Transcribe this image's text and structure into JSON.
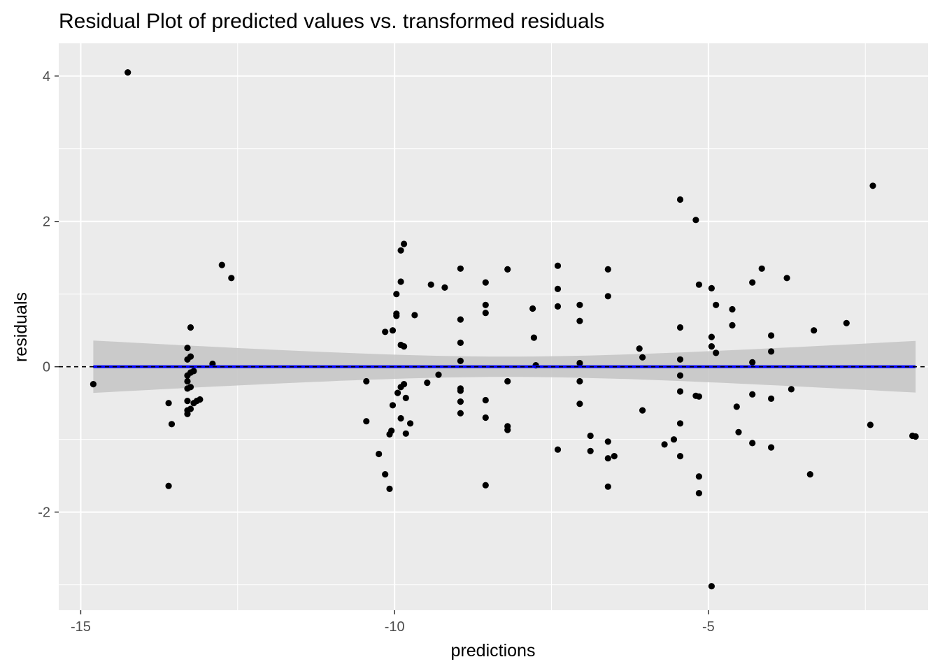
{
  "chart_data": {
    "type": "scatter",
    "title": "Residual Plot of predicted values vs. transformed residuals",
    "xlabel": "predictions",
    "ylabel": "residuals",
    "xlim": [
      -15.35,
      -1.5
    ],
    "ylim": [
      -3.35,
      4.45
    ],
    "x_ticks": [
      -15,
      -10,
      -5
    ],
    "x_tick_labels": [
      "-15",
      "-10",
      "-5"
    ],
    "y_ticks": [
      -2,
      0,
      2,
      4
    ],
    "y_tick_labels": [
      "-2",
      "0",
      "2",
      "4"
    ],
    "grid": true,
    "background_color": "#ebebeb",
    "grid_color": "#ffffff",
    "point_color": "#000000",
    "fit_line": {
      "method": "linear",
      "slope": 0,
      "intercept": 0,
      "color": "#0000ff",
      "x_range": [
        -14.8,
        -1.7
      ],
      "band_color": "#c4c4c4",
      "band_half_width_ends": 0.36,
      "band_half_width_center": 0.14,
      "band_center_x": -8.2
    },
    "reference_line": {
      "y": 0,
      "style": "dashed",
      "color": "#000000"
    },
    "points": [
      {
        "x": -14.8,
        "y": -0.24
      },
      {
        "x": -14.25,
        "y": 4.05
      },
      {
        "x": -13.6,
        "y": -0.5
      },
      {
        "x": -13.6,
        "y": -1.64
      },
      {
        "x": -13.55,
        "y": -0.79
      },
      {
        "x": -13.3,
        "y": 0.26
      },
      {
        "x": -13.3,
        "y": 0.1
      },
      {
        "x": -13.3,
        "y": -0.12
      },
      {
        "x": -13.3,
        "y": -0.2
      },
      {
        "x": -13.3,
        "y": -0.3
      },
      {
        "x": -13.3,
        "y": -0.47
      },
      {
        "x": -13.3,
        "y": -0.6
      },
      {
        "x": -13.3,
        "y": -0.65
      },
      {
        "x": -13.25,
        "y": 0.54
      },
      {
        "x": -13.25,
        "y": 0.14
      },
      {
        "x": -13.25,
        "y": -0.08
      },
      {
        "x": -13.25,
        "y": -0.28
      },
      {
        "x": -13.25,
        "y": -0.58
      },
      {
        "x": -13.2,
        "y": -0.5
      },
      {
        "x": -13.2,
        "y": -0.06
      },
      {
        "x": -13.15,
        "y": -0.47
      },
      {
        "x": -13.1,
        "y": -0.45
      },
      {
        "x": -12.9,
        "y": 0.04
      },
      {
        "x": -12.75,
        "y": 1.4
      },
      {
        "x": -12.6,
        "y": 1.22
      },
      {
        "x": -10.45,
        "y": -0.2
      },
      {
        "x": -10.45,
        "y": -0.75
      },
      {
        "x": -10.25,
        "y": -1.2
      },
      {
        "x": -10.15,
        "y": 0.48
      },
      {
        "x": -10.15,
        "y": -1.48
      },
      {
        "x": -10.08,
        "y": -0.93
      },
      {
        "x": -10.08,
        "y": -1.68
      },
      {
        "x": -10.05,
        "y": -0.88
      },
      {
        "x": -10.03,
        "y": 0.5
      },
      {
        "x": -10.03,
        "y": -0.53
      },
      {
        "x": -9.97,
        "y": 1.0
      },
      {
        "x": -9.97,
        "y": 0.73
      },
      {
        "x": -9.97,
        "y": 0.7
      },
      {
        "x": -9.95,
        "y": -0.36
      },
      {
        "x": -9.9,
        "y": 1.6
      },
      {
        "x": -9.9,
        "y": 1.17
      },
      {
        "x": -9.9,
        "y": 0.3
      },
      {
        "x": -9.9,
        "y": -0.28
      },
      {
        "x": -9.9,
        "y": -0.71
      },
      {
        "x": -9.85,
        "y": 1.69
      },
      {
        "x": -9.85,
        "y": 0.28
      },
      {
        "x": -9.85,
        "y": -0.24
      },
      {
        "x": -9.82,
        "y": -0.43
      },
      {
        "x": -9.82,
        "y": -0.92
      },
      {
        "x": -9.75,
        "y": -0.78
      },
      {
        "x": -9.68,
        "y": 0.71
      },
      {
        "x": -9.48,
        "y": -0.22
      },
      {
        "x": -9.42,
        "y": 1.13
      },
      {
        "x": -9.3,
        "y": -0.11
      },
      {
        "x": -9.2,
        "y": 1.09
      },
      {
        "x": -8.95,
        "y": 1.35
      },
      {
        "x": -8.95,
        "y": 0.65
      },
      {
        "x": -8.95,
        "y": 0.33
      },
      {
        "x": -8.95,
        "y": 0.08
      },
      {
        "x": -8.95,
        "y": -0.3
      },
      {
        "x": -8.95,
        "y": -0.33
      },
      {
        "x": -8.95,
        "y": -0.48
      },
      {
        "x": -8.95,
        "y": -0.64
      },
      {
        "x": -8.55,
        "y": 1.16
      },
      {
        "x": -8.55,
        "y": 0.85
      },
      {
        "x": -8.55,
        "y": 0.74
      },
      {
        "x": -8.55,
        "y": -0.46
      },
      {
        "x": -8.55,
        "y": -0.7
      },
      {
        "x": -8.55,
        "y": -1.63
      },
      {
        "x": -8.2,
        "y": 1.34
      },
      {
        "x": -8.2,
        "y": -0.2
      },
      {
        "x": -8.2,
        "y": -0.82
      },
      {
        "x": -8.2,
        "y": -0.87
      },
      {
        "x": -7.8,
        "y": 0.8
      },
      {
        "x": -7.78,
        "y": 0.4
      },
      {
        "x": -7.75,
        "y": 0.02
      },
      {
        "x": -7.4,
        "y": 1.39
      },
      {
        "x": -7.4,
        "y": 1.07
      },
      {
        "x": -7.4,
        "y": 0.83
      },
      {
        "x": -7.4,
        "y": -1.14
      },
      {
        "x": -7.05,
        "y": 0.85
      },
      {
        "x": -7.05,
        "y": 0.63
      },
      {
        "x": -7.05,
        "y": 0.05
      },
      {
        "x": -7.05,
        "y": -0.2
      },
      {
        "x": -7.05,
        "y": -0.51
      },
      {
        "x": -6.88,
        "y": -0.95
      },
      {
        "x": -6.88,
        "y": -1.16
      },
      {
        "x": -6.6,
        "y": 1.34
      },
      {
        "x": -6.6,
        "y": 0.97
      },
      {
        "x": -6.6,
        "y": -1.03
      },
      {
        "x": -6.6,
        "y": -1.26
      },
      {
        "x": -6.6,
        "y": -1.65
      },
      {
        "x": -6.5,
        "y": -1.23
      },
      {
        "x": -6.1,
        "y": 0.25
      },
      {
        "x": -6.05,
        "y": 0.13
      },
      {
        "x": -6.05,
        "y": -0.6
      },
      {
        "x": -5.7,
        "y": -1.07
      },
      {
        "x": -5.55,
        "y": -1.0
      },
      {
        "x": -5.45,
        "y": 2.3
      },
      {
        "x": -5.45,
        "y": 0.54
      },
      {
        "x": -5.45,
        "y": 0.1
      },
      {
        "x": -5.45,
        "y": -0.12
      },
      {
        "x": -5.45,
        "y": -0.34
      },
      {
        "x": -5.45,
        "y": -0.78
      },
      {
        "x": -5.45,
        "y": -1.23
      },
      {
        "x": -5.2,
        "y": 2.02
      },
      {
        "x": -5.2,
        "y": -0.4
      },
      {
        "x": -5.15,
        "y": 1.13
      },
      {
        "x": -5.15,
        "y": -0.41
      },
      {
        "x": -5.15,
        "y": -1.51
      },
      {
        "x": -5.15,
        "y": -1.74
      },
      {
        "x": -4.95,
        "y": 1.08
      },
      {
        "x": -4.95,
        "y": 0.41
      },
      {
        "x": -4.95,
        "y": 0.28
      },
      {
        "x": -4.95,
        "y": -3.02
      },
      {
        "x": -4.88,
        "y": 0.85
      },
      {
        "x": -4.88,
        "y": 0.19
      },
      {
        "x": -4.62,
        "y": 0.79
      },
      {
        "x": -4.62,
        "y": 0.57
      },
      {
        "x": -4.55,
        "y": -0.55
      },
      {
        "x": -4.52,
        "y": -0.9
      },
      {
        "x": -4.3,
        "y": 1.16
      },
      {
        "x": -4.3,
        "y": 0.06
      },
      {
        "x": -4.3,
        "y": -0.38
      },
      {
        "x": -4.3,
        "y": -1.05
      },
      {
        "x": -4.15,
        "y": 1.35
      },
      {
        "x": -4.0,
        "y": 0.43
      },
      {
        "x": -4.0,
        "y": 0.21
      },
      {
        "x": -4.0,
        "y": -0.44
      },
      {
        "x": -4.0,
        "y": -1.11
      },
      {
        "x": -3.75,
        "y": 1.22
      },
      {
        "x": -3.68,
        "y": -0.31
      },
      {
        "x": -3.38,
        "y": -1.48
      },
      {
        "x": -3.32,
        "y": 0.5
      },
      {
        "x": -2.8,
        "y": 0.6
      },
      {
        "x": -2.42,
        "y": -0.8
      },
      {
        "x": -2.38,
        "y": 2.49
      },
      {
        "x": -1.75,
        "y": -0.95
      },
      {
        "x": -1.7,
        "y": -0.96
      }
    ]
  }
}
